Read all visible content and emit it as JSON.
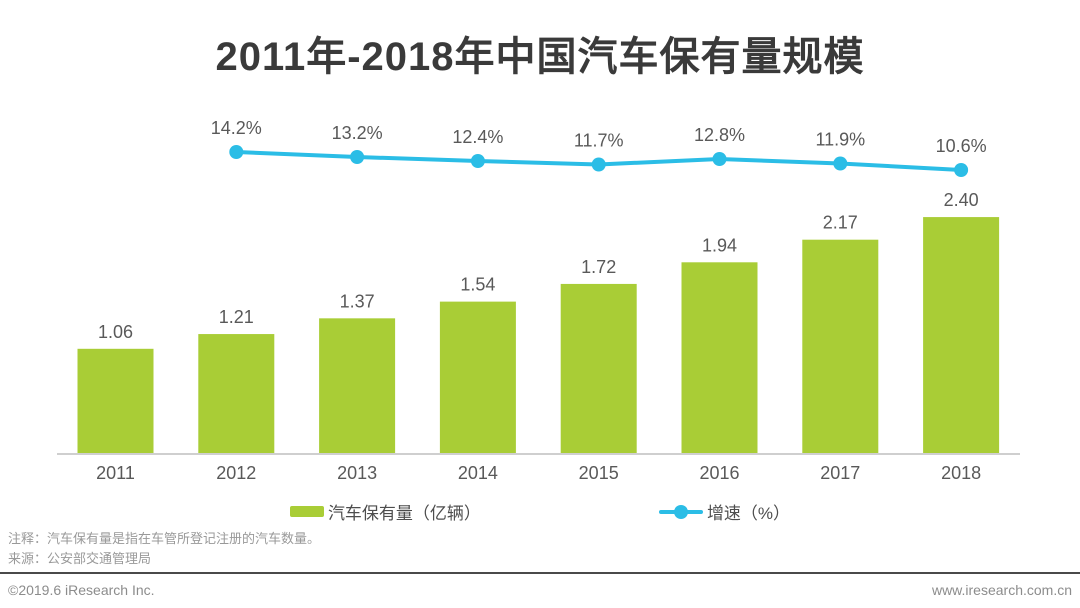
{
  "title": "2011年-2018年中国汽车保有量规模",
  "chart_data": {
    "type": "bar",
    "title": "2011年-2018年中国汽车保有量规模",
    "categories": [
      "2011",
      "2012",
      "2013",
      "2014",
      "2015",
      "2016",
      "2017",
      "2018"
    ],
    "series": [
      {
        "name": "汽车保有量（亿辆）",
        "type": "bar",
        "values": [
          1.06,
          1.21,
          1.37,
          1.54,
          1.72,
          1.94,
          2.17,
          2.4
        ],
        "labels": [
          "1.06",
          "1.21",
          "1.37",
          "1.54",
          "1.72",
          "1.94",
          "2.17",
          "2.40"
        ],
        "color": "#a9cd36"
      },
      {
        "name": "增速（%）",
        "type": "line",
        "x": [
          "2012",
          "2013",
          "2014",
          "2015",
          "2016",
          "2017",
          "2018"
        ],
        "start_index": 1,
        "values": [
          14.2,
          13.2,
          12.4,
          11.7,
          12.8,
          11.9,
          10.6
        ],
        "labels": [
          "14.2%",
          "13.2%",
          "12.4%",
          "11.7%",
          "12.8%",
          "11.9%",
          "10.6%"
        ],
        "color": "#2bbde6"
      }
    ],
    "xlabel": "",
    "ylabel": "",
    "grid": false,
    "legend_position": "bottom"
  },
  "legend": {
    "bar_label": "汽车保有量（亿辆）",
    "line_label": "增速（%）"
  },
  "notes": {
    "annotation": "注释：汽车保有量是指在车管所登记注册的汽车数量。",
    "source": "来源：公安部交通管理局"
  },
  "footer": {
    "copyright": "©2019.6 iResearch Inc.",
    "website": "www.iresearch.com.cn"
  },
  "colors": {
    "bar": "#a9cd36",
    "line": "#2bbde6",
    "title": "#3a3a3a",
    "value_label": "#595959",
    "axis_line": "#cfcfcf",
    "note_text": "#999999",
    "footer_text": "#8c8c8c",
    "footer_rule": "#4a4a4a"
  }
}
